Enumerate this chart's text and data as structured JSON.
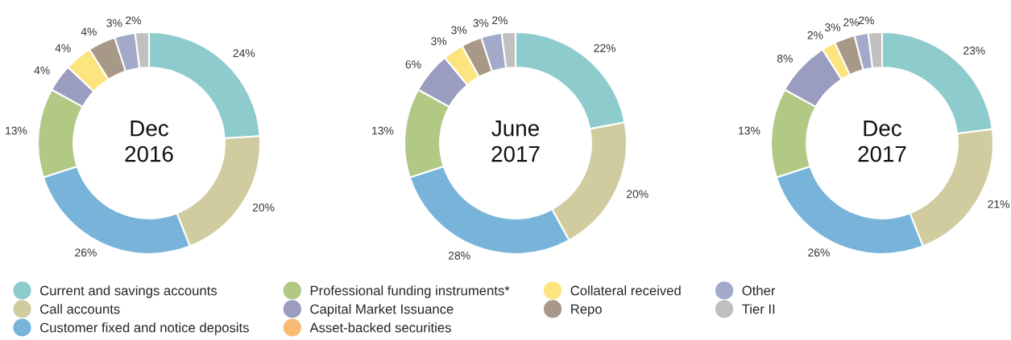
{
  "chart_data": [
    {
      "type": "donut",
      "title": "Dec\n2016",
      "categories": [
        "Current and savings accounts",
        "Call accounts",
        "Customer fixed and notice deposits",
        "Professional funding instruments*",
        "Capital Market Issuance",
        "Asset-backed securities",
        "Collateral received",
        "Repo",
        "Other",
        "Tier II"
      ],
      "values": [
        24,
        20,
        26,
        13,
        4,
        0,
        4,
        4,
        3,
        2
      ],
      "value_labels": [
        "24%",
        "20%",
        "26%",
        "13%",
        "4%",
        null,
        "4%",
        "4%",
        "3%",
        "2%"
      ],
      "colors": [
        "#8ecbcc",
        "#d1cc9f",
        "#78b4da",
        "#b1c985",
        "#9a9cc0",
        "#f8bb73",
        "#fce57e",
        "#a89887",
        "#a3a9c9",
        "#c0c0c0"
      ],
      "legend": "bottom"
    },
    {
      "type": "donut",
      "title": "June\n2017",
      "categories": [
        null,
        null,
        null,
        null,
        null,
        null,
        null,
        null,
        null,
        null
      ],
      "values": [
        22,
        20,
        28,
        13,
        6,
        0,
        3,
        3,
        3,
        2
      ],
      "value_labels": [
        "22%",
        "20%",
        "28%",
        "13%",
        "6%",
        null,
        "3%",
        "3%",
        "3%",
        "2%"
      ],
      "colors": [
        "#8ecbcc",
        "#d1cc9f",
        "#78b4da",
        "#b1c985",
        "#9a9cc0",
        "#f8bb73",
        "#fce57e",
        "#a89887",
        "#a3a9c9",
        "#c0c0c0"
      ]
    },
    {
      "type": "donut",
      "title": "Dec\n2017",
      "categories": [
        null,
        null,
        null,
        null,
        null,
        null,
        null,
        null,
        null,
        null
      ],
      "values": [
        23,
        21,
        26,
        13,
        8,
        0,
        2,
        3,
        2,
        2
      ],
      "value_labels": [
        "23%",
        "21%",
        "26%",
        "13%",
        "8%",
        null,
        "2%",
        "3%",
        "2%",
        "2%"
      ],
      "colors": [
        "#8ecbcc",
        "#d1cc9f",
        "#78b4da",
        "#b1c985",
        "#9a9cc0",
        "#f8bb73",
        "#fce57e",
        "#a89887",
        "#a3a9c9",
        "#c0c0c0"
      ]
    }
  ]
}
